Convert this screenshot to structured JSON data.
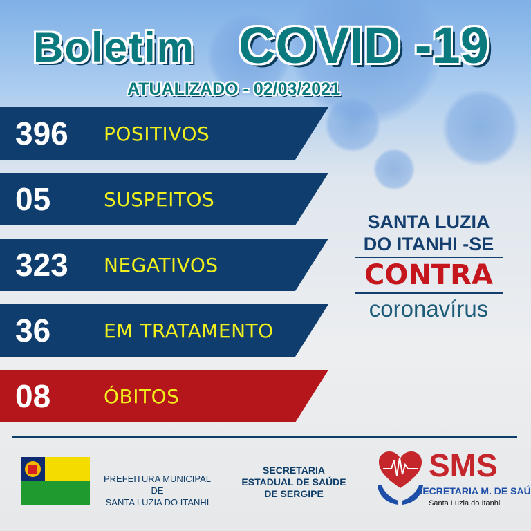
{
  "header": {
    "title_left": "Boletim",
    "title_right": "COVID -19",
    "updated": "ATUALIZADO - 02/03/2021"
  },
  "stats": [
    {
      "value": "396",
      "label": "POSITIVOS",
      "color": "#0f3e6e"
    },
    {
      "value": "05",
      "label": "SUSPEITOS",
      "color": "#0f3e6e"
    },
    {
      "value": "323",
      "label": "NEGATIVOS",
      "color": "#0f3e6e"
    },
    {
      "value": "36",
      "label": "EM TRATAMENTO",
      "color": "#0f3e6e"
    },
    {
      "value": "08",
      "label": "ÓBITOS",
      "color": "#b5161b"
    }
  ],
  "slogan": {
    "line1": "SANTA LUZIA",
    "line2": "DO ITANHI -SE",
    "line3": "CONTRA",
    "line4": "coronavírus"
  },
  "footer": {
    "prefeitura_line1": "PREFEITURA MUNICIPAL DE",
    "prefeitura_line2": "SANTA LUZIA DO ITANHI",
    "estadual_line1": "SECRETARIA",
    "estadual_line2": "ESTADUAL DE SAÚDE",
    "estadual_line3": "DE SERGIPE",
    "sms_logo": "SMS",
    "sms_line1": "SECRETARIA M. DE SAÚDE",
    "sms_line2": "Santa Luzia do Itanhi"
  }
}
